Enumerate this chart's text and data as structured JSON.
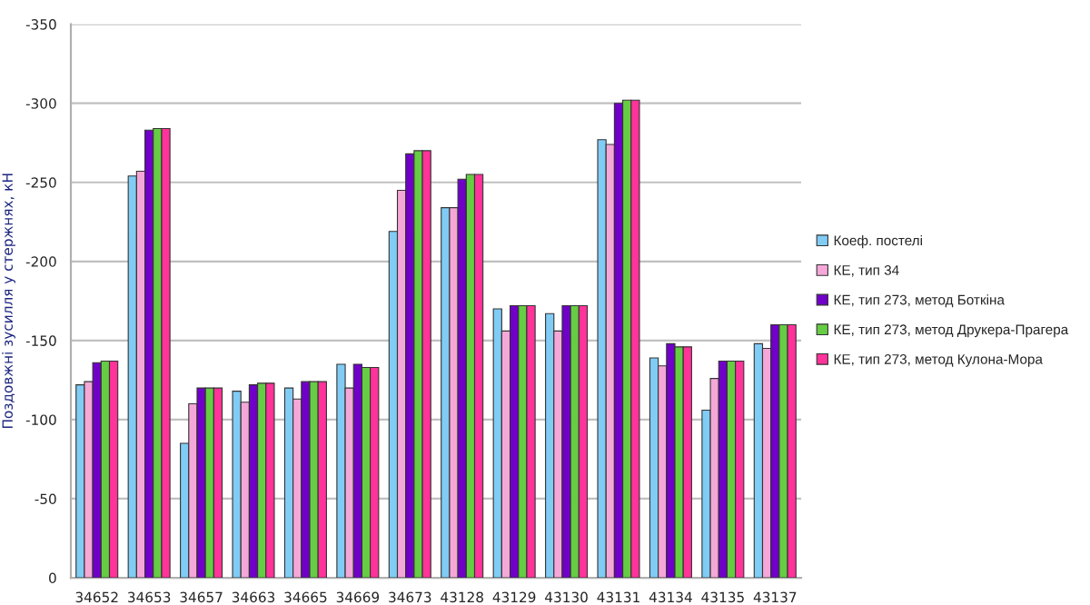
{
  "chart_data": {
    "type": "bar",
    "ylabel": "Поздовжні зусилля у стержнях, кН",
    "categories": [
      "34652",
      "34653",
      "34657",
      "34663",
      "34665",
      "34669",
      "34673",
      "43128",
      "43129",
      "43130",
      "43131",
      "43134",
      "43135",
      "43137"
    ],
    "series": [
      {
        "name": "Коеф. постелі",
        "color": "#80ccf5",
        "values": [
          -122,
          -254,
          -85,
          -118,
          -120,
          -135,
          -219,
          -234,
          -170,
          -167,
          -277,
          -139,
          -106,
          -148
        ]
      },
      {
        "name": "КЕ, тип 34",
        "color": "#f5a8d8",
        "values": [
          -124,
          -257,
          -110,
          -111,
          -113,
          -120,
          -245,
          -234,
          -156,
          -156,
          -274,
          -134,
          -126,
          -145
        ]
      },
      {
        "name": "КЕ, тип 273, метод Боткіна",
        "color": "#7000c8",
        "values": [
          -136,
          -283,
          -120,
          -122,
          -124,
          -135,
          -268,
          -252,
          -172,
          -172,
          -300,
          -148,
          -137,
          -160
        ]
      },
      {
        "name": "КЕ, тип 273, метод Друкера-Прагера",
        "color": "#66cc44",
        "values": [
          -137,
          -284,
          -120,
          -123,
          -124,
          -133,
          -270,
          -255,
          -172,
          -172,
          -302,
          -146,
          -137,
          -160
        ]
      },
      {
        "name": "КЕ, тип 273, метод Кулона-Мора",
        "color": "#ff3399",
        "values": [
          -137,
          -284,
          -120,
          -123,
          -124,
          -133,
          -270,
          -255,
          -172,
          -172,
          -302,
          -146,
          -137,
          -160
        ]
      }
    ],
    "ylim": [
      0,
      -350
    ],
    "yticks": [
      0,
      -50,
      -100,
      -150,
      -200,
      -250,
      -300,
      -350
    ],
    "grid": "y",
    "legend": "right"
  }
}
